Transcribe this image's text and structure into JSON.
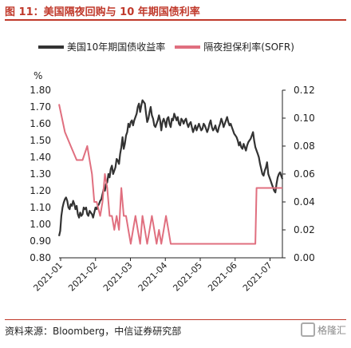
{
  "header": {
    "title": "图 11：美国隔夜回购与 10 年期国债利率"
  },
  "footer": {
    "source": "资料来源：Bloomberg，中信证券研究部",
    "logo_text": "格隆汇"
  },
  "colors": {
    "accent": "#c0392b",
    "series_10y": "#333333",
    "series_sofr": "#e06f7f"
  },
  "chart_data": {
    "type": "line",
    "left_unit": "%",
    "xticks": [
      "2021-01",
      "2021-02",
      "2021-03",
      "2021-04",
      "2021-05",
      "2021-06",
      "2021-07"
    ],
    "left_axis": {
      "lim": [
        0.8,
        1.8
      ],
      "ticks": [
        "1.80",
        "1.70",
        "1.60",
        "1.50",
        "1.40",
        "1.30",
        "1.20",
        "1.10",
        "1.00",
        "0.90",
        "0.80"
      ]
    },
    "right_axis": {
      "lim": [
        0.0,
        0.12
      ],
      "ticks": [
        "0.12",
        "0.10",
        "0.08",
        "0.06",
        "0.04",
        "0.02",
        "0.00"
      ]
    },
    "series": [
      {
        "name": "美国10年期国债收益率",
        "axis": "left",
        "points": [
          [
            0.0,
            0.93
          ],
          [
            0.02,
            0.96
          ],
          [
            0.04,
            1.05
          ],
          [
            0.06,
            1.1
          ],
          [
            0.08,
            1.13
          ],
          [
            0.1,
            1.15
          ],
          [
            0.12,
            1.16
          ],
          [
            0.14,
            1.14
          ],
          [
            0.16,
            1.1
          ],
          [
            0.18,
            1.09
          ],
          [
            0.2,
            1.12
          ],
          [
            0.22,
            1.11
          ],
          [
            0.24,
            1.14
          ],
          [
            0.26,
            1.12
          ],
          [
            0.28,
            1.09
          ],
          [
            0.3,
            1.11
          ],
          [
            0.32,
            1.06
          ],
          [
            0.34,
            1.04
          ],
          [
            0.36,
            1.07
          ],
          [
            0.38,
            1.05
          ],
          [
            0.4,
            1.06
          ],
          [
            0.42,
            1.1
          ],
          [
            0.44,
            1.09
          ],
          [
            0.46,
            1.1
          ],
          [
            0.48,
            1.06
          ],
          [
            0.5,
            1.05
          ],
          [
            0.52,
            1.08
          ],
          [
            0.54,
            1.07
          ],
          [
            0.56,
            1.06
          ],
          [
            0.58,
            1.04
          ],
          [
            0.6,
            1.07
          ],
          [
            0.62,
            1.1
          ],
          [
            0.64,
            1.09
          ],
          [
            0.66,
            1.11
          ],
          [
            0.68,
            1.12
          ],
          [
            0.7,
            1.14
          ],
          [
            0.72,
            1.15
          ],
          [
            0.74,
            1.18
          ],
          [
            0.76,
            1.21
          ],
          [
            0.78,
            1.2
          ],
          [
            0.8,
            1.24
          ],
          [
            0.82,
            1.25
          ],
          [
            0.84,
            1.3
          ],
          [
            0.86,
            1.28
          ],
          [
            0.88,
            1.33
          ],
          [
            0.9,
            1.35
          ],
          [
            0.92,
            1.3
          ],
          [
            0.94,
            1.32
          ],
          [
            0.96,
            1.34
          ],
          [
            0.98,
            1.39
          ],
          [
            1.0,
            1.38
          ],
          [
            1.02,
            1.36
          ],
          [
            1.04,
            1.42
          ],
          [
            1.06,
            1.46
          ],
          [
            1.08,
            1.52
          ],
          [
            1.1,
            1.45
          ],
          [
            1.12,
            1.48
          ],
          [
            1.14,
            1.53
          ],
          [
            1.16,
            1.55
          ],
          [
            1.18,
            1.6
          ],
          [
            1.2,
            1.58
          ],
          [
            1.22,
            1.61
          ],
          [
            1.24,
            1.62
          ],
          [
            1.26,
            1.59
          ],
          [
            1.28,
            1.62
          ],
          [
            1.3,
            1.64
          ],
          [
            1.32,
            1.66
          ],
          [
            1.34,
            1.7
          ],
          [
            1.36,
            1.72
          ],
          [
            1.38,
            1.67
          ],
          [
            1.4,
            1.71
          ],
          [
            1.42,
            1.74
          ],
          [
            1.44,
            1.73
          ],
          [
            1.46,
            1.72
          ],
          [
            1.48,
            1.66
          ],
          [
            1.5,
            1.61
          ],
          [
            1.52,
            1.63
          ],
          [
            1.54,
            1.67
          ],
          [
            1.56,
            1.7
          ],
          [
            1.58,
            1.65
          ],
          [
            1.6,
            1.63
          ],
          [
            1.62,
            1.59
          ],
          [
            1.64,
            1.58
          ],
          [
            1.66,
            1.6
          ],
          [
            1.68,
            1.62
          ],
          [
            1.7,
            1.65
          ],
          [
            1.72,
            1.62
          ],
          [
            1.74,
            1.56
          ],
          [
            1.76,
            1.61
          ],
          [
            1.78,
            1.63
          ],
          [
            1.8,
            1.61
          ],
          [
            1.82,
            1.58
          ],
          [
            1.84,
            1.63
          ],
          [
            1.86,
            1.64
          ],
          [
            1.88,
            1.6
          ],
          [
            1.9,
            1.58
          ],
          [
            1.92,
            1.63
          ],
          [
            1.94,
            1.62
          ],
          [
            1.96,
            1.66
          ],
          [
            1.98,
            1.64
          ],
          [
            2.0,
            1.62
          ],
          [
            2.02,
            1.64
          ],
          [
            2.04,
            1.6
          ],
          [
            2.06,
            1.59
          ],
          [
            2.08,
            1.63
          ],
          [
            2.1,
            1.62
          ],
          [
            2.12,
            1.6
          ],
          [
            2.14,
            1.62
          ],
          [
            2.16,
            1.63
          ],
          [
            2.18,
            1.6
          ],
          [
            2.2,
            1.58
          ],
          [
            2.22,
            1.6
          ],
          [
            2.24,
            1.61
          ],
          [
            2.26,
            1.58
          ],
          [
            2.28,
            1.55
          ],
          [
            2.3,
            1.57
          ],
          [
            2.32,
            1.59
          ],
          [
            2.34,
            1.56
          ],
          [
            2.36,
            1.58
          ],
          [
            2.38,
            1.6
          ],
          [
            2.4,
            1.58
          ],
          [
            2.42,
            1.56
          ],
          [
            2.44,
            1.57
          ],
          [
            2.46,
            1.6
          ],
          [
            2.48,
            1.59
          ],
          [
            2.5,
            1.57
          ],
          [
            2.52,
            1.55
          ],
          [
            2.54,
            1.57
          ],
          [
            2.56,
            1.6
          ],
          [
            2.58,
            1.62
          ],
          [
            2.6,
            1.58
          ],
          [
            2.62,
            1.56
          ],
          [
            2.64,
            1.57
          ],
          [
            2.66,
            1.59
          ],
          [
            2.68,
            1.56
          ],
          [
            2.7,
            1.55
          ],
          [
            2.72,
            1.58
          ],
          [
            2.74,
            1.6
          ],
          [
            2.76,
            1.63
          ],
          [
            2.78,
            1.61
          ],
          [
            2.8,
            1.58
          ],
          [
            2.82,
            1.6
          ],
          [
            2.84,
            1.62
          ],
          [
            2.86,
            1.64
          ],
          [
            2.88,
            1.61
          ],
          [
            2.9,
            1.59
          ],
          [
            2.92,
            1.6
          ],
          [
            2.94,
            1.58
          ],
          [
            2.96,
            1.56
          ],
          [
            2.98,
            1.54
          ],
          [
            3.0,
            1.53
          ],
          [
            3.02,
            1.52
          ],
          [
            3.04,
            1.5
          ],
          [
            3.06,
            1.47
          ],
          [
            3.08,
            1.49
          ],
          [
            3.1,
            1.46
          ],
          [
            3.12,
            1.45
          ],
          [
            3.14,
            1.48
          ],
          [
            3.16,
            1.46
          ],
          [
            3.18,
            1.44
          ],
          [
            3.2,
            1.47
          ],
          [
            3.22,
            1.49
          ],
          [
            3.24,
            1.5
          ],
          [
            3.26,
            1.51
          ],
          [
            3.28,
            1.53
          ],
          [
            3.3,
            1.55
          ],
          [
            3.32,
            1.5
          ],
          [
            3.34,
            1.46
          ],
          [
            3.36,
            1.44
          ],
          [
            3.38,
            1.42
          ],
          [
            3.4,
            1.4
          ],
          [
            3.42,
            1.36
          ],
          [
            3.44,
            1.33
          ],
          [
            3.46,
            1.3
          ],
          [
            3.48,
            1.29
          ],
          [
            3.5,
            1.32
          ],
          [
            3.52,
            1.34
          ],
          [
            3.54,
            1.37
          ],
          [
            3.56,
            1.3
          ],
          [
            3.58,
            1.28
          ],
          [
            3.6,
            1.26
          ],
          [
            3.62,
            1.24
          ],
          [
            3.64,
            1.22
          ],
          [
            3.66,
            1.2
          ],
          [
            3.68,
            1.19
          ],
          [
            3.7,
            1.24
          ],
          [
            3.72,
            1.28
          ],
          [
            3.74,
            1.3
          ],
          [
            3.76,
            1.31
          ],
          [
            3.78,
            1.29
          ],
          [
            3.8,
            1.27
          ]
        ]
      },
      {
        "name": "隔夜担保利率(SOFR)",
        "axis": "right",
        "points": [
          [
            0.0,
            0.11
          ],
          [
            0.05,
            0.1
          ],
          [
            0.1,
            0.09
          ],
          [
            0.2,
            0.08
          ],
          [
            0.3,
            0.07
          ],
          [
            0.4,
            0.07
          ],
          [
            0.48,
            0.08
          ],
          [
            0.52,
            0.07
          ],
          [
            0.56,
            0.06
          ],
          [
            0.6,
            0.04
          ],
          [
            0.64,
            0.04
          ],
          [
            0.7,
            0.03
          ],
          [
            0.74,
            0.04
          ],
          [
            0.78,
            0.06
          ],
          [
            0.82,
            0.05
          ],
          [
            0.86,
            0.03
          ],
          [
            0.9,
            0.03
          ],
          [
            0.94,
            0.02
          ],
          [
            0.98,
            0.03
          ],
          [
            1.02,
            0.02
          ],
          [
            1.06,
            0.05
          ],
          [
            1.1,
            0.03
          ],
          [
            1.14,
            0.03
          ],
          [
            1.18,
            0.02
          ],
          [
            1.22,
            0.01
          ],
          [
            1.26,
            0.02
          ],
          [
            1.3,
            0.03
          ],
          [
            1.34,
            0.02
          ],
          [
            1.38,
            0.01
          ],
          [
            1.42,
            0.03
          ],
          [
            1.46,
            0.02
          ],
          [
            1.5,
            0.01
          ],
          [
            1.54,
            0.02
          ],
          [
            1.58,
            0.03
          ],
          [
            1.62,
            0.02
          ],
          [
            1.66,
            0.01
          ],
          [
            1.7,
            0.02
          ],
          [
            1.74,
            0.01
          ],
          [
            1.78,
            0.02
          ],
          [
            1.82,
            0.03
          ],
          [
            1.86,
            0.02
          ],
          [
            1.9,
            0.01
          ],
          [
            1.94,
            0.01
          ],
          [
            1.98,
            0.01
          ],
          [
            2.02,
            0.01
          ],
          [
            2.06,
            0.01
          ],
          [
            2.1,
            0.01
          ],
          [
            2.14,
            0.01
          ],
          [
            2.18,
            0.01
          ],
          [
            2.22,
            0.01
          ],
          [
            2.26,
            0.01
          ],
          [
            2.3,
            0.01
          ],
          [
            2.34,
            0.01
          ],
          [
            2.38,
            0.01
          ],
          [
            2.42,
            0.01
          ],
          [
            2.46,
            0.01
          ],
          [
            2.5,
            0.01
          ],
          [
            2.54,
            0.01
          ],
          [
            2.58,
            0.01
          ],
          [
            2.62,
            0.01
          ],
          [
            2.66,
            0.01
          ],
          [
            2.7,
            0.01
          ],
          [
            2.74,
            0.01
          ],
          [
            2.78,
            0.01
          ],
          [
            2.82,
            0.01
          ],
          [
            2.86,
            0.01
          ],
          [
            2.9,
            0.01
          ],
          [
            2.94,
            0.01
          ],
          [
            2.98,
            0.01
          ],
          [
            3.02,
            0.01
          ],
          [
            3.06,
            0.01
          ],
          [
            3.1,
            0.01
          ],
          [
            3.14,
            0.01
          ],
          [
            3.18,
            0.01
          ],
          [
            3.22,
            0.01
          ],
          [
            3.26,
            0.01
          ],
          [
            3.3,
            0.01
          ],
          [
            3.34,
            0.01
          ],
          [
            3.36,
            0.05
          ],
          [
            3.4,
            0.05
          ],
          [
            3.44,
            0.05
          ],
          [
            3.48,
            0.05
          ],
          [
            3.52,
            0.05
          ],
          [
            3.56,
            0.05
          ],
          [
            3.6,
            0.05
          ],
          [
            3.64,
            0.05
          ],
          [
            3.68,
            0.05
          ],
          [
            3.72,
            0.05
          ],
          [
            3.76,
            0.05
          ],
          [
            3.8,
            0.05
          ]
        ]
      }
    ],
    "legend_position": "top",
    "grid": false
  }
}
